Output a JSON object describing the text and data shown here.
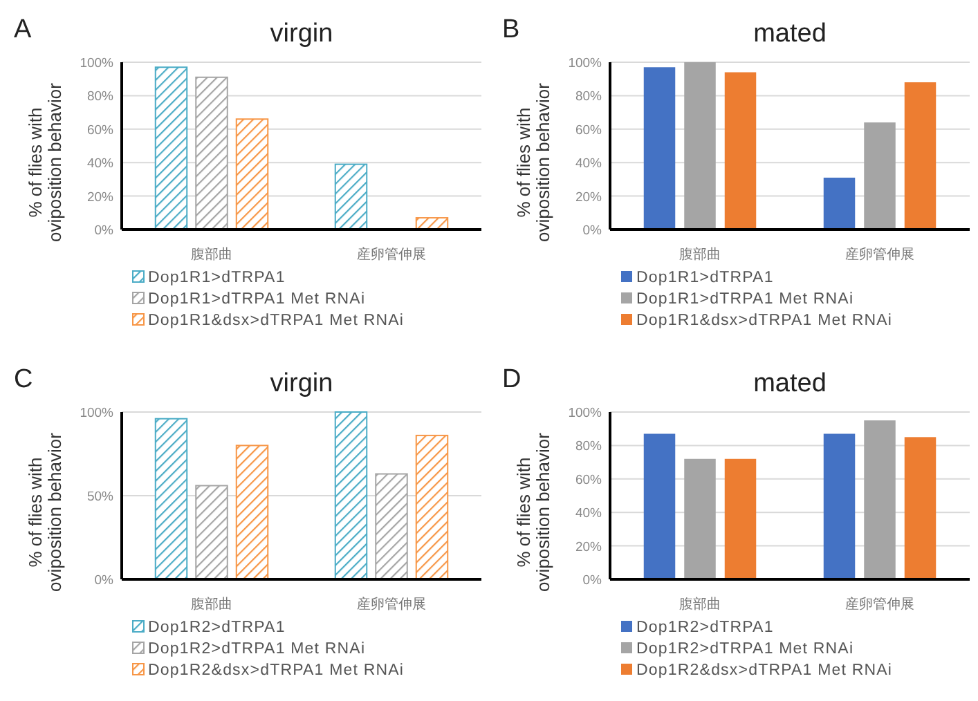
{
  "chart_data": [
    {
      "type": "bar",
      "title": "virgin",
      "ylabel": "% of flies with oviposition behavior",
      "annotations": [
        "A"
      ],
      "categories": [
        "腹部曲",
        "産卵管伸展"
      ],
      "ylim": [
        0,
        100
      ],
      "yticks": [
        {
          "value": 0,
          "label": "0%"
        },
        {
          "value": 20,
          "label": "20%"
        },
        {
          "value": 40,
          "label": "40%"
        },
        {
          "value": 60,
          "label": "60%"
        },
        {
          "value": 80,
          "label": "80%"
        },
        {
          "value": 100,
          "label": "100%"
        }
      ],
      "grid": "y",
      "legend": "bottom",
      "series": [
        {
          "name": "Dop1R1>dTRPA1",
          "color": "#4bacc6",
          "values": [
            97,
            39
          ]
        },
        {
          "name": "Dop1R1>dTRPA1 Met RNAi",
          "color": "#a5a5a5",
          "values": [
            91,
            0
          ]
        },
        {
          "name": "Dop1R1&dsx>dTRPA1 Met RNAi",
          "color": "#f79646",
          "values": [
            66,
            7
          ]
        }
      ]
    },
    {
      "type": "bar",
      "title": "mated",
      "ylabel": "% of flies with oviposition behavior",
      "annotations": [
        "B"
      ],
      "categories": [
        "腹部曲",
        "産卵管伸展"
      ],
      "ylim": [
        0,
        100
      ],
      "yticks": [
        {
          "value": 0,
          "label": "0%"
        },
        {
          "value": 20,
          "label": "20%"
        },
        {
          "value": 40,
          "label": "40%"
        },
        {
          "value": 60,
          "label": "60%"
        },
        {
          "value": 80,
          "label": "80%"
        },
        {
          "value": 100,
          "label": "100%"
        }
      ],
      "grid": "y",
      "legend": "bottom",
      "series": [
        {
          "name": "Dop1R1>dTRPA1",
          "color": "#4472c4",
          "values": [
            97,
            31
          ]
        },
        {
          "name": "Dop1R1>dTRPA1 Met RNAi",
          "color": "#a5a5a5",
          "values": [
            100,
            64
          ]
        },
        {
          "name": "Dop1R1&dsx>dTRPA1 Met RNAi",
          "color": "#ed7d31",
          "values": [
            94,
            88
          ]
        }
      ]
    },
    {
      "type": "bar",
      "title": "virgin",
      "ylabel": "% of flies with oviposition behavior",
      "annotations": [
        "C"
      ],
      "categories": [
        "腹部曲",
        "産卵管伸展"
      ],
      "ylim": [
        0,
        100
      ],
      "yticks": [
        {
          "value": 0,
          "label": "0%"
        },
        {
          "value": 50,
          "label": "50%"
        },
        {
          "value": 100,
          "label": "100%"
        }
      ],
      "grid": "y",
      "legend": "bottom",
      "series": [
        {
          "name": "Dop1R2>dTRPA1",
          "color": "#4bacc6",
          "values": [
            96,
            100
          ]
        },
        {
          "name": "Dop1R2>dTRPA1 Met RNAi",
          "color": "#a5a5a5",
          "values": [
            56,
            63
          ]
        },
        {
          "name": "Dop1R2&dsx>dTRPA1 Met RNAi",
          "color": "#f79646",
          "values": [
            80,
            86
          ]
        }
      ]
    },
    {
      "type": "bar",
      "title": "mated",
      "ylabel": "% of flies with oviposition behavior",
      "annotations": [
        "D"
      ],
      "categories": [
        "腹部曲",
        "産卵管伸展"
      ],
      "ylim": [
        0,
        100
      ],
      "yticks": [
        {
          "value": 0,
          "label": "0%"
        },
        {
          "value": 20,
          "label": "20%"
        },
        {
          "value": 40,
          "label": "40%"
        },
        {
          "value": 60,
          "label": "60%"
        },
        {
          "value": 80,
          "label": "80%"
        },
        {
          "value": 100,
          "label": "100%"
        }
      ],
      "grid": "y",
      "legend": "bottom",
      "series": [
        {
          "name": "Dop1R2>dTRPA1",
          "color": "#4472c4",
          "values": [
            87,
            87
          ]
        },
        {
          "name": "Dop1R2>dTRPA1 Met RNAi",
          "color": "#a5a5a5",
          "values": [
            72,
            95
          ]
        },
        {
          "name": "Dop1R2&dsx>dTRPA1 Met RNAi",
          "color": "#ed7d31",
          "values": [
            72,
            85
          ]
        }
      ]
    }
  ]
}
